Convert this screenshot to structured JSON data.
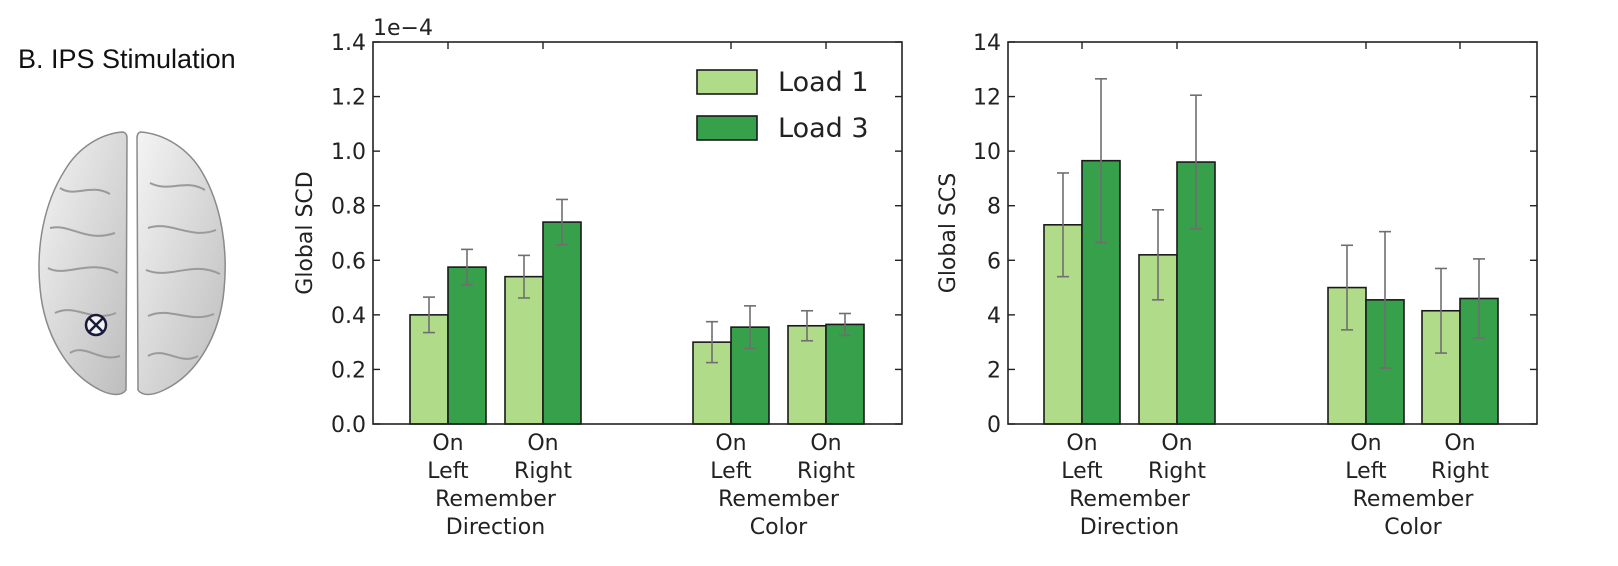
{
  "panel_label": "B. IPS Stimulation",
  "colors": {
    "load1": "#b0dc89",
    "load3": "#36a04b",
    "errorbar": "#6f6f6f",
    "axis": "#222222"
  },
  "brain_icon": "brain-top-view-with-stimulation-marker",
  "chart_data": [
    {
      "type": "bar",
      "ylabel": "Global SCD",
      "scale_label": "1e−4",
      "yticks": [
        "0.0",
        "0.2",
        "0.4",
        "0.6",
        "0.8",
        "1.0",
        "1.2",
        "1.4"
      ],
      "ylim": [
        0,
        1.4
      ],
      "legend": {
        "position": "top-right",
        "entries": [
          "Load 1",
          "Load 3"
        ]
      },
      "groups": [
        {
          "label": "Remember\nDirection",
          "conditions": [
            "On\nLeft",
            "On\nRight"
          ]
        },
        {
          "label": "Remember\nColor",
          "conditions": [
            "On\nLeft",
            "On\nRight"
          ]
        }
      ],
      "series": [
        {
          "name": "Load 1",
          "values": [
            0.4,
            0.54,
            0.3,
            0.36
          ],
          "errors": [
            0.065,
            0.078,
            0.075,
            0.055
          ]
        },
        {
          "name": "Load 3",
          "values": [
            0.575,
            0.74,
            0.355,
            0.365
          ],
          "errors": [
            0.065,
            0.083,
            0.078,
            0.04
          ]
        }
      ]
    },
    {
      "type": "bar",
      "ylabel": "Global SCS",
      "yticks": [
        "0",
        "2",
        "4",
        "6",
        "8",
        "10",
        "12",
        "14"
      ],
      "ylim": [
        0,
        14
      ],
      "groups": [
        {
          "label": "Remember\nDirection",
          "conditions": [
            "On\nLeft",
            "On\nRight"
          ]
        },
        {
          "label": "Remember\nColor",
          "conditions": [
            "On\nLeft",
            "On\nRight"
          ]
        }
      ],
      "series": [
        {
          "name": "Load 1",
          "values": [
            7.3,
            6.2,
            5.0,
            4.15
          ],
          "errors": [
            1.9,
            1.65,
            1.55,
            1.55
          ]
        },
        {
          "name": "Load 3",
          "values": [
            9.65,
            9.6,
            4.55,
            4.6
          ],
          "errors": [
            3.0,
            2.45,
            2.5,
            1.45
          ]
        }
      ]
    }
  ]
}
